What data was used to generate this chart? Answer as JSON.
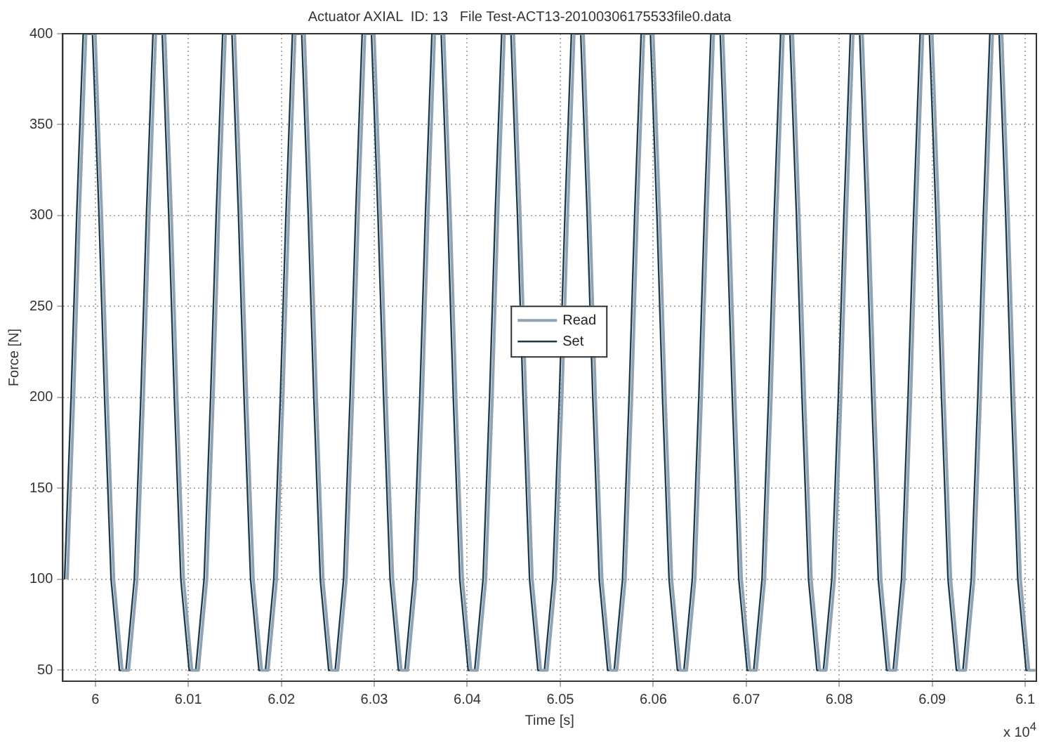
{
  "chart_data": {
    "type": "line",
    "title": "Actuator AXIAL  ID: 13   File Test-ACT13-20100306175533file0.data",
    "xlabel": "Time [s]",
    "ylabel": "Force [N]",
    "annotations": [
      "x 10$^{4}$"
    ],
    "x": [
      5.997,
      5.9977,
      5.9983,
      5.999,
      6.0,
      6.0007,
      6.0013,
      6.002,
      6.0029,
      6.0036,
      6.0045,
      6.0052,
      6.0058,
      6.0065,
      6.0075,
      6.0082,
      6.0088,
      6.0095,
      6.0104,
      6.0111,
      6.012,
      6.0127,
      6.0133,
      6.014,
      6.015,
      6.0157,
      6.0163,
      6.017,
      6.0179,
      6.0186,
      6.0195,
      6.0202,
      6.0208,
      6.0215,
      6.0225,
      6.0232,
      6.0238,
      6.0245,
      6.0254,
      6.0261,
      6.027,
      6.0277,
      6.0283,
      6.029,
      6.03,
      6.0307,
      6.0313,
      6.032,
      6.0329,
      6.0336,
      6.0345,
      6.0352,
      6.0358,
      6.0365,
      6.0375,
      6.0382,
      6.0388,
      6.0395,
      6.0404,
      6.0411,
      6.042,
      6.0427,
      6.0433,
      6.044,
      6.045,
      6.0457,
      6.0463,
      6.047,
      6.0479,
      6.0486,
      6.0495,
      6.0502,
      6.0508,
      6.0515,
      6.0525,
      6.0532,
      6.0538,
      6.0545,
      6.0554,
      6.0561,
      6.057,
      6.0577,
      6.0583,
      6.059,
      6.06,
      6.0607,
      6.0613,
      6.062,
      6.0629,
      6.0636,
      6.0645,
      6.0652,
      6.0658,
      6.0665,
      6.0675,
      6.0682,
      6.0688,
      6.0695,
      6.0704,
      6.0711,
      6.072,
      6.0727,
      6.0733,
      6.074,
      6.075,
      6.0757,
      6.0763,
      6.077,
      6.0779,
      6.0786,
      6.0795,
      6.0802,
      6.0808,
      6.0815,
      6.0825,
      6.0832,
      6.0838,
      6.0845,
      6.0854,
      6.0861,
      6.087,
      6.0877,
      6.0883,
      6.089,
      6.09,
      6.0907,
      6.0913,
      6.092,
      6.0929,
      6.0936,
      6.0945,
      6.0952,
      6.0958,
      6.0965,
      6.0975,
      6.0982,
      6.0988,
      6.0995,
      6.1004,
      6.1011
    ],
    "series": [
      {
        "name": "Read",
        "color": "#8fa3b5",
        "values": [
          100,
          200,
          300,
          400,
          400,
          300,
          200,
          100,
          50,
          50,
          100,
          200,
          300,
          400,
          400,
          300,
          200,
          100,
          50,
          50,
          100,
          200,
          300,
          400,
          400,
          300,
          200,
          100,
          50,
          50,
          100,
          200,
          300,
          400,
          400,
          300,
          200,
          100,
          50,
          50,
          100,
          200,
          300,
          400,
          400,
          300,
          200,
          100,
          50,
          50,
          100,
          200,
          300,
          400,
          400,
          300,
          200,
          100,
          50,
          50,
          100,
          200,
          300,
          400,
          400,
          300,
          200,
          100,
          50,
          50,
          100,
          200,
          300,
          400,
          400,
          300,
          200,
          100,
          50,
          50,
          100,
          200,
          300,
          400,
          400,
          300,
          200,
          100,
          50,
          50,
          100,
          200,
          300,
          400,
          400,
          300,
          200,
          100,
          50,
          50,
          100,
          200,
          300,
          400,
          400,
          300,
          200,
          100,
          50,
          50,
          100,
          200,
          300,
          400,
          400,
          300,
          200,
          100,
          50,
          50,
          100,
          200,
          300,
          400,
          400,
          300,
          200,
          100,
          50,
          50,
          100,
          200,
          300,
          400,
          400,
          300,
          200,
          100,
          50,
          50
        ]
      },
      {
        "name": "Set",
        "color": "#1f3a48",
        "x": [
          5.9967,
          5.9974,
          5.998,
          5.9987,
          5.9997,
          6.0004,
          6.001,
          6.0017,
          6.0026,
          6.0033,
          6.0042,
          6.0049,
          6.0055,
          6.0062,
          6.0072,
          6.0079,
          6.0085,
          6.0092,
          6.0101,
          6.0108,
          6.0117,
          6.0124,
          6.013,
          6.0137,
          6.0147,
          6.0154,
          6.016,
          6.0167,
          6.0176,
          6.0183,
          6.0192,
          6.0199,
          6.0205,
          6.0212,
          6.0222,
          6.0229,
          6.0235,
          6.0242,
          6.0251,
          6.0258,
          6.0267,
          6.0274,
          6.028,
          6.0287,
          6.0297,
          6.0304,
          6.031,
          6.0317,
          6.0326,
          6.0333,
          6.0342,
          6.0349,
          6.0355,
          6.0362,
          6.0372,
          6.0379,
          6.0385,
          6.0392,
          6.0401,
          6.0408,
          6.0417,
          6.0424,
          6.043,
          6.0437,
          6.0447,
          6.0454,
          6.046,
          6.0467,
          6.0476,
          6.0483,
          6.0492,
          6.0499,
          6.0505,
          6.0512,
          6.0522,
          6.0529,
          6.0535,
          6.0542,
          6.0551,
          6.0558,
          6.0567,
          6.0574,
          6.058,
          6.0587,
          6.0597,
          6.0604,
          6.061,
          6.0617,
          6.0626,
          6.0633,
          6.0642,
          6.0649,
          6.0655,
          6.0662,
          6.0672,
          6.0679,
          6.0685,
          6.0692,
          6.0701,
          6.0708,
          6.0717,
          6.0724,
          6.073,
          6.0737,
          6.0747,
          6.0754,
          6.076,
          6.0767,
          6.0776,
          6.0783,
          6.0792,
          6.0799,
          6.0805,
          6.0812,
          6.0822,
          6.0829,
          6.0835,
          6.0842,
          6.0851,
          6.0858,
          6.0867,
          6.0874,
          6.088,
          6.0887,
          6.0897,
          6.0904,
          6.091,
          6.0917,
          6.0926,
          6.0933,
          6.0942,
          6.0949,
          6.0955,
          6.0962,
          6.0972,
          6.0979,
          6.0985,
          6.0992,
          6.1001,
          6.1008
        ],
        "values": [
          100,
          200,
          300,
          400,
          400,
          300,
          200,
          100,
          50,
          50,
          100,
          200,
          300,
          400,
          400,
          300,
          200,
          100,
          50,
          50,
          100,
          200,
          300,
          400,
          400,
          300,
          200,
          100,
          50,
          50,
          100,
          200,
          300,
          400,
          400,
          300,
          200,
          100,
          50,
          50,
          100,
          200,
          300,
          400,
          400,
          300,
          200,
          100,
          50,
          50,
          100,
          200,
          300,
          400,
          400,
          300,
          200,
          100,
          50,
          50,
          100,
          200,
          300,
          400,
          400,
          300,
          200,
          100,
          50,
          50,
          100,
          200,
          300,
          400,
          400,
          300,
          200,
          100,
          50,
          50,
          100,
          200,
          300,
          400,
          400,
          300,
          200,
          100,
          50,
          50,
          100,
          200,
          300,
          400,
          400,
          300,
          200,
          100,
          50,
          50,
          100,
          200,
          300,
          400,
          400,
          300,
          200,
          100,
          50,
          50,
          100,
          200,
          300,
          400,
          400,
          300,
          200,
          100,
          50,
          50,
          100,
          200,
          300,
          400,
          400,
          300,
          200,
          100,
          50,
          50,
          100,
          200,
          300,
          400,
          400,
          300,
          200,
          100,
          50,
          50
        ]
      }
    ],
    "xlim": [
      5.9965,
      6.1012
    ],
    "xticks": [
      6,
      6.01,
      6.02,
      6.03,
      6.04,
      6.05,
      6.06,
      6.07,
      6.08,
      6.09,
      6.1
    ],
    "ylim": [
      44,
      400
    ],
    "yticks": [
      50,
      100,
      150,
      200,
      250,
      300,
      350,
      400
    ],
    "grid": true,
    "legend": "center",
    "marker": "none",
    "line_style": "solid"
  }
}
